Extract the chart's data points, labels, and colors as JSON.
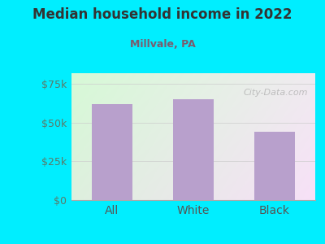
{
  "title": "Median household income in 2022",
  "subtitle": "Millvale, PA",
  "categories": [
    "All",
    "White",
    "Black"
  ],
  "values": [
    62000,
    65000,
    44000
  ],
  "bar_color": "#b8a0cc",
  "title_color": "#333333",
  "subtitle_color": "#7a5c6e",
  "tick_label_color": "#5a7a6a",
  "xticklabel_color": "#555555",
  "background_outer": "#00EEFF",
  "background_inner_left": "#d8f0d0",
  "background_inner_right": "#f0f0ee",
  "ylim": [
    0,
    82000
  ],
  "yticks": [
    0,
    25000,
    50000,
    75000
  ],
  "ytick_labels": [
    "$0",
    "$25k",
    "$50k",
    "$75k"
  ],
  "watermark": "City-Data.com",
  "bar_width": 0.5
}
